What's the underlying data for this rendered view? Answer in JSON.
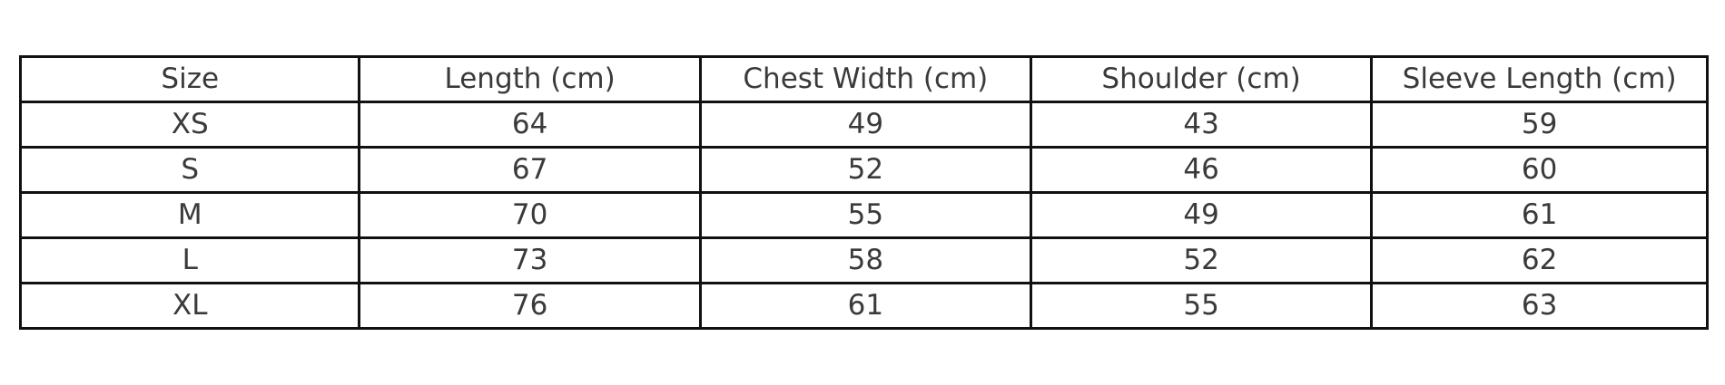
{
  "table": {
    "columns": [
      "Size",
      "Length (cm)",
      "Chest Width (cm)",
      "Shoulder (cm)",
      "Sleeve Length (cm)"
    ],
    "rows": [
      [
        "XS",
        "64",
        "49",
        "43",
        "59"
      ],
      [
        "S",
        "67",
        "52",
        "46",
        "60"
      ],
      [
        "M",
        "70",
        "55",
        "49",
        "61"
      ],
      [
        "L",
        "73",
        "58",
        "52",
        "62"
      ],
      [
        "XL",
        "76",
        "61",
        "55",
        "63"
      ]
    ]
  },
  "colors": {
    "border": "#111111",
    "text": "#3a3a3a",
    "background": "#ffffff"
  }
}
